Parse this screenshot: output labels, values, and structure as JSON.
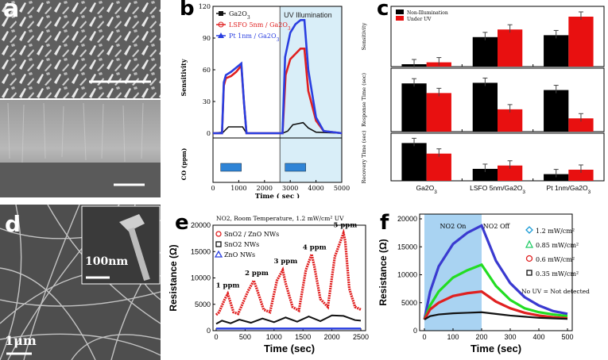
{
  "figure": {
    "panel_letters": {
      "a": "a",
      "b": "b",
      "c": "c",
      "d": "d",
      "e": "e",
      "f": "f"
    },
    "panel_d": {
      "inset_scale": "100nm",
      "main_scale": "1μm"
    }
  },
  "chart_data": [
    {
      "id": "panel-b",
      "type": "line",
      "title": "",
      "annotation": "UV Illumination",
      "xlabel": "Time ( sec )",
      "ylabel_top": "Sensitivity",
      "ylabel_bottom": "CO (ppm)",
      "xlim": [
        0,
        5000
      ],
      "ylim": [
        0,
        120
      ],
      "xticks": [
        0,
        1000,
        2000,
        3000,
        4000,
        5000
      ],
      "yticks": [
        0,
        30,
        60,
        90,
        120
      ],
      "legend": [
        "Ga2O3",
        "LSFO 5nm / Ga2O3",
        "Pt 1nm / Ga2O3"
      ],
      "series": [
        {
          "name": "Ga2O3",
          "color": "#111111",
          "x": [
            0,
            400,
            600,
            800,
            1000,
            1150,
            1300,
            2700,
            2900,
            3100,
            3300,
            3500,
            3700,
            4000,
            5000
          ],
          "y": [
            0,
            1,
            6,
            6,
            6,
            6,
            0,
            0,
            2,
            8,
            9,
            10,
            5,
            1,
            0
          ]
        },
        {
          "name": "LSFO 5nm / Ga2O3",
          "color": "#e02020",
          "x": [
            0,
            350,
            420,
            500,
            700,
            900,
            1100,
            1200,
            1300,
            2700,
            2820,
            3000,
            3200,
            3400,
            3550,
            3700,
            4000,
            4300,
            5000
          ],
          "y": [
            0,
            0,
            45,
            52,
            54,
            58,
            64,
            30,
            0,
            0,
            55,
            70,
            75,
            80,
            80,
            40,
            12,
            2,
            0
          ]
        },
        {
          "name": "Pt 1nm / Ga2O3",
          "color": "#2a3fe0",
          "x": [
            0,
            350,
            420,
            500,
            700,
            900,
            1100,
            1200,
            1300,
            2700,
            2800,
            3000,
            3200,
            3400,
            3550,
            3700,
            4000,
            4300,
            5000
          ],
          "y": [
            0,
            0,
            48,
            55,
            58,
            62,
            66,
            30,
            0,
            0,
            72,
            95,
            103,
            107,
            107,
            60,
            15,
            2,
            0
          ]
        }
      ],
      "co_pulses_sec": [
        [
          300,
          1100
        ],
        [
          2800,
          3600
        ]
      ],
      "uv_region_sec": [
        2600,
        5000
      ]
    },
    {
      "id": "panel-c",
      "type": "bar",
      "legend": [
        "Non-Illumination",
        "Under UV"
      ],
      "categories": [
        "Ga2O3",
        "LSFO 5nm/Ga2O3",
        "Pt 1nm/Ga2O3"
      ],
      "subplots": [
        {
          "ylabel": "Sensitivity",
          "series": [
            {
              "name": "Non-Illumination",
              "values": [
                5,
                62,
                66
              ]
            },
            {
              "name": "Under UV",
              "values": [
                9,
                78,
                105
              ]
            }
          ],
          "ylim": [
            0,
            120
          ]
        },
        {
          "ylabel": "Response Time (sec)",
          "series": [
            {
              "name": "Non-Illumination",
              "values": [
                700,
                705,
                645
              ]
            },
            {
              "name": "Under UV",
              "values": [
                620,
                485,
                410
              ]
            }
          ],
          "ylim": [
            300,
            800
          ]
        },
        {
          "ylabel": "Recovery Time (sec)",
          "series": [
            {
              "name": "Non-Illumination",
              "values": [
                680,
                215,
                120
              ]
            },
            {
              "name": "Under UV",
              "values": [
                490,
                275,
                200
              ]
            }
          ],
          "ylim": [
            0,
            800
          ]
        }
      ]
    },
    {
      "id": "panel-e",
      "type": "line",
      "title": "NO2, Room Temperature, 1.2 mW/cm² UV",
      "xlabel": "Time (sec)",
      "ylabel": "Resistance (Ω)",
      "xlim": [
        0,
        2500
      ],
      "ylim": [
        0,
        20000
      ],
      "xticks": [
        0,
        500,
        1000,
        1500,
        2000,
        2500
      ],
      "yticks": [
        0,
        5000,
        10000,
        15000,
        20000
      ],
      "legend": [
        "SnO2 / ZnO NWs",
        "SnO2 NWs",
        "ZnO NWs"
      ],
      "annotations": [
        "1 ppm",
        "2 ppm",
        "3 ppm",
        "4 ppm",
        "5 ppm"
      ],
      "series": [
        {
          "name": "SnO2 / ZnO NWs",
          "color": "#e02020",
          "x": [
            0,
            50,
            150,
            200,
            300,
            380,
            550,
            650,
            700,
            820,
            930,
            1050,
            1150,
            1200,
            1320,
            1430,
            1550,
            1650,
            1700,
            1800,
            1930,
            2050,
            2200,
            2230,
            2300,
            2400,
            2500
          ],
          "y": [
            3000,
            3500,
            6000,
            7000,
            3500,
            3200,
            7500,
            9500,
            8000,
            4000,
            3500,
            9500,
            11500,
            9000,
            4500,
            3800,
            11500,
            14500,
            12000,
            6000,
            4500,
            14000,
            18500,
            17000,
            8000,
            4500,
            4000
          ]
        },
        {
          "name": "SnO2 NWs",
          "color": "#111111",
          "x": [
            0,
            100,
            250,
            400,
            600,
            800,
            1000,
            1200,
            1400,
            1600,
            1800,
            2000,
            2200,
            2400,
            2500
          ],
          "y": [
            1300,
            1900,
            1400,
            2100,
            1500,
            2300,
            1600,
            2500,
            1700,
            2700,
            1800,
            2900,
            2800,
            2000,
            1900
          ]
        },
        {
          "name": "ZnO NWs",
          "color": "#2a3fe0",
          "x": [
            0,
            2500
          ],
          "y": [
            400,
            400
          ]
        }
      ]
    },
    {
      "id": "panel-f",
      "type": "line",
      "xlabel": "Time (sec)",
      "ylabel": "Resistance (Ω)",
      "xlim": [
        0,
        500
      ],
      "ylim": [
        0,
        20000
      ],
      "xticks": [
        0,
        100,
        200,
        300,
        400,
        500
      ],
      "yticks": [
        0,
        5000,
        10000,
        15000,
        20000
      ],
      "annotations": [
        "NO2 On",
        "NO2 Off",
        "No UV = Not detected"
      ],
      "shaded_region_sec": [
        0,
        200
      ],
      "legend": [
        "1.2 mW/cm²",
        "0.85 mW/cm²",
        "0.6 mW/cm²",
        "0.35 mW/cm²"
      ],
      "series": [
        {
          "name": "1.2 mW/cm²",
          "color": "#3a3ad0",
          "x": [
            0,
            20,
            50,
            100,
            150,
            200,
            250,
            300,
            350,
            400,
            450,
            500
          ],
          "y": [
            2000,
            7000,
            11500,
            15500,
            17500,
            18800,
            12500,
            8500,
            6000,
            4500,
            3500,
            3000
          ]
        },
        {
          "name": "0.85 mW/cm²",
          "color": "#22dd22",
          "x": [
            0,
            20,
            50,
            100,
            150,
            200,
            250,
            300,
            350,
            400,
            450,
            500
          ],
          "y": [
            2000,
            4500,
            7000,
            9500,
            10800,
            11800,
            8000,
            5500,
            4000,
            3300,
            2900,
            2600
          ]
        },
        {
          "name": "0.6 mW/cm²",
          "color": "#e02020",
          "x": [
            0,
            20,
            50,
            100,
            150,
            200,
            250,
            300,
            350,
            400,
            450,
            500
          ],
          "y": [
            2000,
            3800,
            5000,
            6200,
            6700,
            7000,
            5200,
            4000,
            3200,
            2700,
            2400,
            2200
          ]
        },
        {
          "name": "0.35 mW/cm²",
          "color": "#111111",
          "x": [
            0,
            20,
            50,
            100,
            150,
            200,
            250,
            300,
            350,
            400,
            450,
            500
          ],
          "y": [
            2000,
            2600,
            2900,
            3100,
            3200,
            3300,
            3000,
            2700,
            2500,
            2300,
            2200,
            2100
          ]
        }
      ]
    }
  ]
}
